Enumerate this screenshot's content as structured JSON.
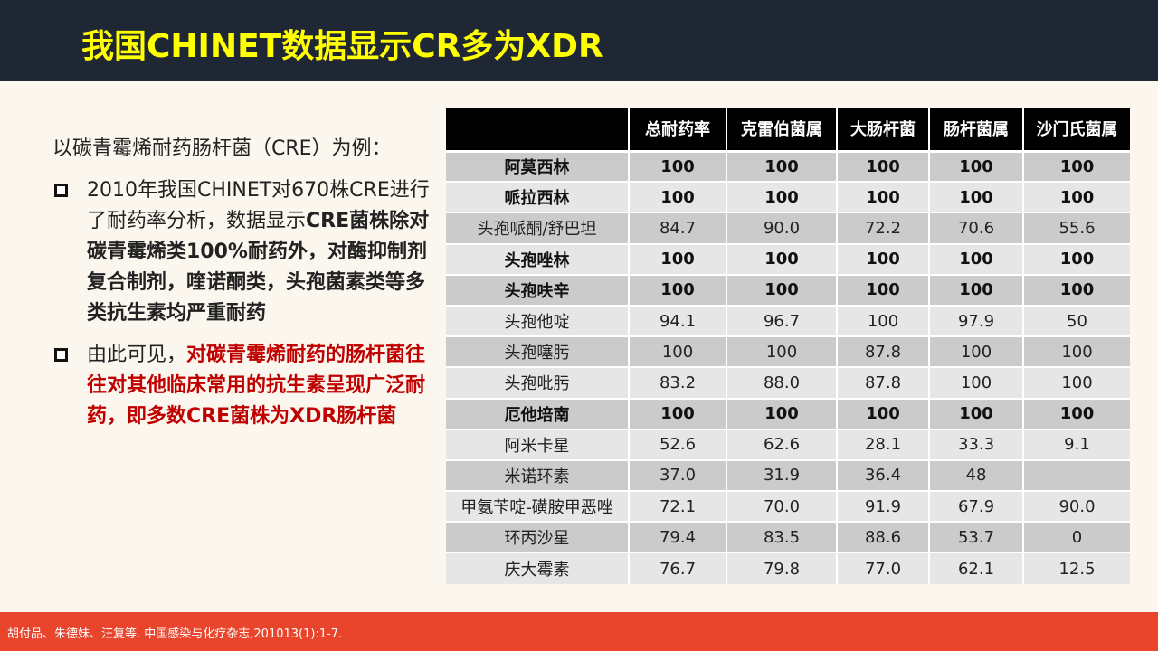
{
  "header": {
    "title": "我国CHINET数据显示CR多为XDR"
  },
  "content": {
    "intro": "以碳青霉烯耐药肠杆菌（CRE）为例：",
    "bullet1": {
      "normal": "2010年我国CHINET对670株CRE进行了耐药率分析，数据显示",
      "bold": "CRE菌株除对碳青霉烯类100%耐药外，对酶抑制剂复合制剂，喹诺酮类，头孢菌素类等多类抗生素均严重耐药"
    },
    "bullet2": {
      "normal": "由此可见，",
      "red": "对碳青霉烯耐药的肠杆菌往往对其他临床常用的抗生素呈现广泛耐药，即多数CRE菌株为XDR肠杆菌"
    }
  },
  "table": {
    "headers": [
      "",
      "总耐药率",
      "克雷伯菌属",
      "大肠杆菌",
      "肠杆菌属",
      "沙门氏菌属"
    ],
    "rows": [
      {
        "cells": [
          "阿莫西林",
          "100",
          "100",
          "100",
          "100",
          "100"
        ],
        "bold": true
      },
      {
        "cells": [
          "哌拉西林",
          "100",
          "100",
          "100",
          "100",
          "100"
        ],
        "bold": true
      },
      {
        "cells": [
          "头孢哌酮/舒巴坦",
          "84.7",
          "90.0",
          "72.2",
          "70.6",
          "55.6"
        ],
        "bold": false
      },
      {
        "cells": [
          "头孢唑林",
          "100",
          "100",
          "100",
          "100",
          "100"
        ],
        "bold": true
      },
      {
        "cells": [
          "头孢呋辛",
          "100",
          "100",
          "100",
          "100",
          "100"
        ],
        "bold": true
      },
      {
        "cells": [
          "头孢他啶",
          "94.1",
          "96.7",
          "100",
          "97.9",
          "50"
        ],
        "bold": false
      },
      {
        "cells": [
          "头孢噻肟",
          "100",
          "100",
          "87.8",
          "100",
          "100"
        ],
        "bold": false
      },
      {
        "cells": [
          "头孢吡肟",
          "83.2",
          "88.0",
          "87.8",
          "100",
          "100"
        ],
        "bold": false
      },
      {
        "cells": [
          "厄他培南",
          "100",
          "100",
          "100",
          "100",
          "100"
        ],
        "bold": true
      },
      {
        "cells": [
          "阿米卡星",
          "52.6",
          "62.6",
          "28.1",
          "33.3",
          "9.1"
        ],
        "bold": false
      },
      {
        "cells": [
          "米诺环素",
          "37.0",
          "31.9",
          "36.4",
          "48",
          ""
        ],
        "bold": false
      },
      {
        "cells": [
          "甲氨苄啶-磺胺甲恶唑",
          "72.1",
          "70.0",
          "91.9",
          "67.9",
          "90.0"
        ],
        "bold": false
      },
      {
        "cells": [
          "环丙沙星",
          "79.4",
          "83.5",
          "88.6",
          "53.7",
          "0"
        ],
        "bold": false
      },
      {
        "cells": [
          "庆大霉素",
          "76.7",
          "79.8",
          "77.0",
          "62.1",
          "12.5"
        ],
        "bold": false
      }
    ]
  },
  "footer": {
    "citation": "胡付品、朱德妹、汪复等. 中国感染与化疗杂志,201013(1):1-7."
  }
}
